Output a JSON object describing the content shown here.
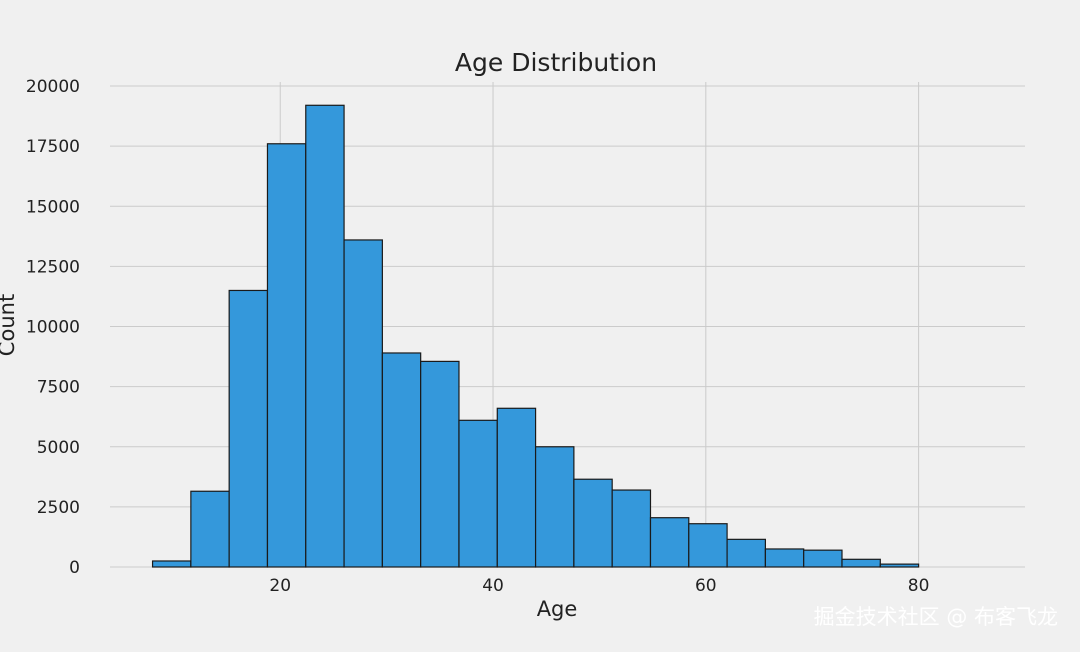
{
  "chart_data": {
    "type": "bar",
    "title": "Age Distribution",
    "xlabel": "Age",
    "ylabel": "Count",
    "xlim": [
      4,
      90
    ],
    "ylim": [
      0,
      21000
    ],
    "xticks": [
      20,
      40,
      60,
      80
    ],
    "yticks": [
      0,
      2500,
      5000,
      7500,
      10000,
      12500,
      15000,
      17500,
      20000
    ],
    "grid": true,
    "bar_color": "#3498db",
    "edge_color": "#1a1a1a",
    "bins": [
      {
        "x0": 8.0,
        "x1": 11.6,
        "count": 250
      },
      {
        "x0": 11.6,
        "x1": 15.2,
        "count": 3150
      },
      {
        "x0": 15.2,
        "x1": 18.8,
        "count": 11500
      },
      {
        "x0": 18.8,
        "x1": 22.4,
        "count": 17600
      },
      {
        "x0": 22.4,
        "x1": 26.0,
        "count": 19200
      },
      {
        "x0": 26.0,
        "x1": 29.6,
        "count": 13600
      },
      {
        "x0": 29.6,
        "x1": 33.2,
        "count": 8900
      },
      {
        "x0": 33.2,
        "x1": 36.8,
        "count": 8550
      },
      {
        "x0": 36.8,
        "x1": 40.4,
        "count": 6100
      },
      {
        "x0": 40.4,
        "x1": 44.0,
        "count": 6600
      },
      {
        "x0": 44.0,
        "x1": 47.6,
        "count": 5000
      },
      {
        "x0": 47.6,
        "x1": 51.2,
        "count": 3650
      },
      {
        "x0": 51.2,
        "x1": 54.8,
        "count": 3200
      },
      {
        "x0": 54.8,
        "x1": 58.4,
        "count": 2050
      },
      {
        "x0": 58.4,
        "x1": 62.0,
        "count": 1800
      },
      {
        "x0": 62.0,
        "x1": 65.6,
        "count": 1150
      },
      {
        "x0": 65.6,
        "x1": 69.2,
        "count": 750
      },
      {
        "x0": 69.2,
        "x1": 72.8,
        "count": 700
      },
      {
        "x0": 72.8,
        "x1": 76.4,
        "count": 320
      },
      {
        "x0": 76.4,
        "x1": 80.0,
        "count": 120
      }
    ]
  },
  "watermark": "掘金技术社区 @ 布客飞龙"
}
